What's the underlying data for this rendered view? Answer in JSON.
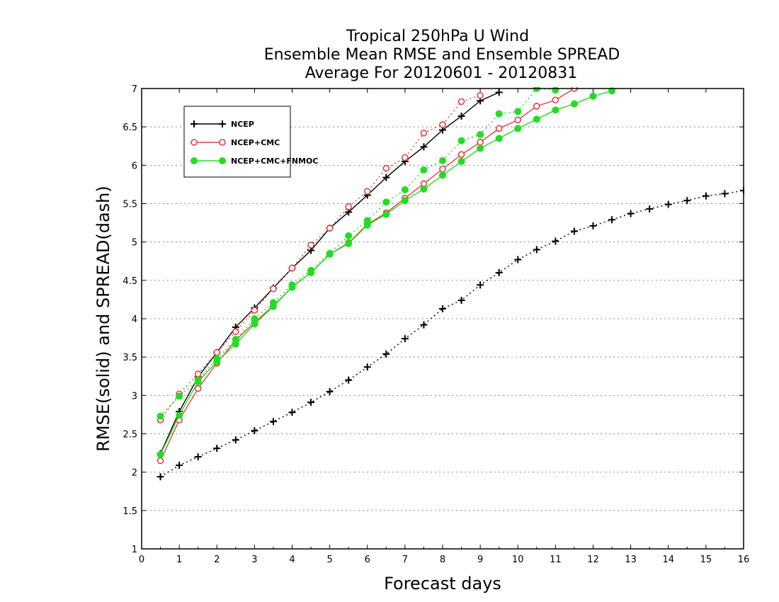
{
  "chart_data": {
    "type": "line",
    "title_lines": [
      "Tropical 250hPa U Wind",
      "Ensemble Mean RMSE and Ensemble SPREAD",
      "Average For 20120601 - 20120831"
    ],
    "xlabel": "Forecast days",
    "ylabel": "RMSE(solid) and SPREAD(dash)",
    "xlim": [
      0,
      16
    ],
    "ylim": [
      1,
      7
    ],
    "xticks": [
      "0",
      "1",
      "2",
      "3",
      "4",
      "5",
      "6",
      "7",
      "8",
      "9",
      "10",
      "11",
      "12",
      "13",
      "14",
      "15",
      "16"
    ],
    "yticks": [
      "1",
      "1.5",
      "2",
      "2.5",
      "3",
      "3.5",
      "4",
      "4.5",
      "5",
      "5.5",
      "6",
      "6.5",
      "7"
    ],
    "grid": true,
    "legend_placement": "top-left",
    "series": [
      {
        "name": "NCEP",
        "color": "#000000",
        "marker": "plus",
        "rmse": {
          "x": [
            0.5,
            1,
            1.5,
            2,
            2.5,
            3,
            3.5,
            4,
            4.5,
            5,
            5.5,
            6,
            6.5,
            7,
            7.5,
            8,
            8.5,
            9,
            9.5
          ],
          "y": [
            2.24,
            2.79,
            3.24,
            3.56,
            3.89,
            4.14,
            4.4,
            4.66,
            4.89,
            5.18,
            5.39,
            5.61,
            5.84,
            6.05,
            6.24,
            6.46,
            6.64,
            6.84,
            6.95
          ]
        },
        "spread": {
          "x": [
            0.5,
            1,
            1.5,
            2,
            2.5,
            3,
            3.5,
            4,
            4.5,
            5,
            5.5,
            6,
            6.5,
            7,
            7.5,
            8,
            8.5,
            9,
            9.5,
            10,
            10.5,
            11,
            11.5,
            12,
            12.5,
            13,
            13.5,
            14,
            14.5,
            15,
            15.5,
            16
          ],
          "y": [
            1.94,
            2.09,
            2.2,
            2.31,
            2.42,
            2.54,
            2.66,
            2.78,
            2.91,
            3.05,
            3.2,
            3.37,
            3.54,
            3.74,
            3.92,
            4.13,
            4.24,
            4.44,
            4.6,
            4.77,
            4.9,
            5.01,
            5.14,
            5.21,
            5.29,
            5.37,
            5.43,
            5.49,
            5.54,
            5.6,
            5.63,
            5.67
          ]
        }
      },
      {
        "name": "NCEP+CMC",
        "color": "#e04040",
        "marker": "open-circle",
        "rmse": {
          "x": [
            0.5,
            1,
            1.5,
            2,
            2.5,
            3,
            3.5,
            4,
            4.5,
            5,
            5.5,
            6,
            6.5,
            7,
            7.5,
            8,
            8.5,
            9,
            9.5,
            10,
            10.5,
            11,
            11.5
          ],
          "y": [
            2.15,
            2.68,
            3.09,
            3.42,
            3.72,
            3.95,
            4.17,
            4.41,
            4.6,
            4.84,
            4.99,
            5.23,
            5.38,
            5.57,
            5.76,
            5.95,
            6.14,
            6.3,
            6.48,
            6.59,
            6.77,
            6.85,
            7.0
          ]
        },
        "spread": {
          "x": [
            0.5,
            1,
            1.5,
            2,
            2.5,
            3,
            3.5,
            4,
            4.5,
            5,
            5.5,
            6,
            6.5,
            7,
            7.5,
            8,
            8.5,
            9
          ],
          "y": [
            2.68,
            3.02,
            3.28,
            3.56,
            3.83,
            4.11,
            4.39,
            4.66,
            4.96,
            5.18,
            5.46,
            5.66,
            5.96,
            6.1,
            6.42,
            6.53,
            6.83,
            6.91
          ]
        }
      },
      {
        "name": "NCEP+CMC+FNMOC",
        "color": "#22dd22",
        "marker": "filled-circle",
        "rmse": {
          "x": [
            0.5,
            1,
            1.5,
            2,
            2.5,
            3,
            3.5,
            4,
            4.5,
            5,
            5.5,
            6,
            6.5,
            7,
            7.5,
            8,
            8.5,
            9,
            9.5,
            10,
            10.5,
            11,
            11.5,
            12,
            12.5
          ],
          "y": [
            2.23,
            2.74,
            3.18,
            3.44,
            3.67,
            3.93,
            4.16,
            4.41,
            4.6,
            4.84,
            4.98,
            5.22,
            5.36,
            5.54,
            5.69,
            5.87,
            6.05,
            6.22,
            6.35,
            6.48,
            6.6,
            6.72,
            6.8,
            6.9,
            6.97
          ]
        },
        "spread": {
          "x": [
            0.5,
            1,
            1.5,
            2,
            2.5,
            3,
            3.5,
            4,
            4.5,
            5,
            5.5,
            6,
            6.5,
            7,
            7.5,
            8,
            8.5,
            9,
            9.5,
            10,
            10.5,
            11
          ],
          "y": [
            2.73,
            2.99,
            3.2,
            3.48,
            3.73,
            4.0,
            4.21,
            4.44,
            4.63,
            4.85,
            5.08,
            5.28,
            5.52,
            5.68,
            5.94,
            6.06,
            6.32,
            6.4,
            6.67,
            6.7,
            7.0,
            6.98
          ]
        }
      }
    ]
  }
}
